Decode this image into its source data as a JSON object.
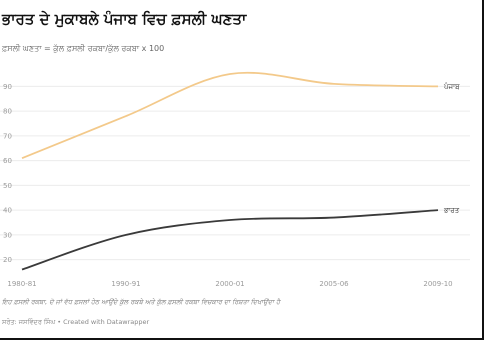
{
  "title": "ਭਾਰਤ ਦੇ ਮੁਕਾਬਲੇ ਪੰਜਾਬ ਵਿਚ ਫ਼ਸਲੀ ਘਣਤਾ",
  "subtitle": "ਫ਼ਸਲੀ ਘਣਤਾ = ਕੁੱਲ ਫ਼ਸਲੀ ਰਕਬਾ/ਕੁੱਲ ਰਕਬਾ x 100",
  "footnote": "ਇਹ ਫ਼ਸਲੀ ਰਕਬਾ, ਦੋ ਜਾਂ ਵੱਧ ਫ਼ਸਲਾਂ ਹੇਠ ਆਉਂਦੇ ਕੁੱਲ ਰਕਬੇ ਅਤੇ ਕੁੱਲ ਫ਼ਸਲੀ ਰਕਬਾ ਵਿਚਕਾਰ ਦਾ ਰਿਸ਼ਤਾ ਦਿਖਾਉਂਦਾ ਹੈ",
  "source": "ਸਰੋਤ: ਜਸਵਿੰਦਰ ਸਿੰਘ • Created with Datawrapper",
  "colors": {
    "punjab": "#f3c98a",
    "india": "#3a3a3a",
    "grid": "#ececec"
  },
  "chart_data": {
    "type": "line",
    "categories": [
      "1980-81",
      "1990-91",
      "2000-01",
      "2005-06",
      "2009-10"
    ],
    "y_ticks": [
      "90",
      "80",
      "70",
      "60",
      "50",
      "40",
      "30",
      "20"
    ],
    "ylim": [
      15,
      95
    ],
    "grid": true,
    "series": [
      {
        "name": "ਪੰਜਾਬ",
        "values": [
          61,
          78,
          95,
          91,
          90
        ]
      },
      {
        "name": "ਭਾਰਤ",
        "values": [
          16,
          30,
          36,
          37,
          40
        ]
      }
    ]
  }
}
